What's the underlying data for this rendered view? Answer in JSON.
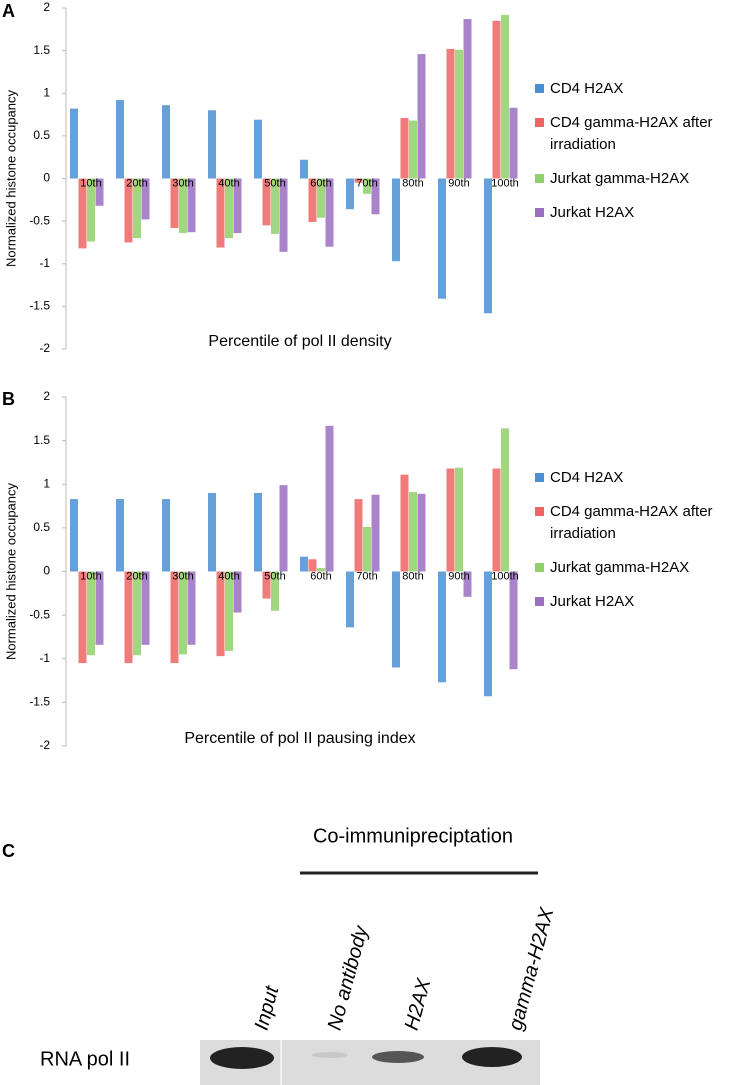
{
  "chart_data": [
    {
      "type": "bar",
      "label": "A",
      "y_label": "Normalized histone occupancy",
      "x_label": "Percentile of pol II density",
      "categories": [
        "10th",
        "20th",
        "30th",
        "40th",
        "50th",
        "60th",
        "70th",
        "80th",
        "90th",
        "100th"
      ],
      "series": [
        {
          "name": "CD4 H2AX",
          "color": "#4a8fd3",
          "values": [
            0.82,
            0.92,
            0.86,
            0.8,
            0.69,
            0.22,
            -0.36,
            -0.97,
            -1.41,
            -1.58
          ]
        },
        {
          "name": "CD4 gamma-H2AX after irradiation",
          "color": "#ee6464",
          "values": [
            -0.82,
            -0.75,
            -0.58,
            -0.81,
            -0.55,
            -0.51,
            -0.05,
            0.71,
            1.52,
            1.85
          ]
        },
        {
          "name": "Jurkat gamma-H2AX",
          "color": "#8fd06a",
          "values": [
            -0.74,
            -0.7,
            -0.64,
            -0.7,
            -0.65,
            -0.46,
            -0.18,
            0.68,
            1.51,
            1.92
          ]
        },
        {
          "name": "Jurkat H2AX",
          "color": "#9a6fc1",
          "values": [
            -0.32,
            -0.48,
            -0.63,
            -0.64,
            -0.86,
            -0.8,
            -0.42,
            1.46,
            1.87,
            0.83
          ]
        }
      ],
      "ylim": [
        -2,
        2
      ],
      "yticks": [
        -2,
        -1.5,
        -1,
        -0.5,
        0,
        0.5,
        1,
        1.5,
        2
      ]
    },
    {
      "type": "bar",
      "label": "B",
      "y_label": "Normalized histone occupancy",
      "x_label": "Percentile of pol II pausing index",
      "categories": [
        "10th",
        "20th",
        "30th",
        "40th",
        "50th",
        "60th",
        "70th",
        "80th",
        "90th",
        "100th"
      ],
      "series": [
        {
          "name": "CD4 H2AX",
          "color": "#4a8fd3",
          "values": [
            0.83,
            0.83,
            0.83,
            0.9,
            0.9,
            0.17,
            -0.64,
            -1.1,
            -1.27,
            -1.43
          ]
        },
        {
          "name": "CD4 gamma-H2AX after irradiation",
          "color": "#ee6464",
          "values": [
            -1.05,
            -1.05,
            -1.05,
            -0.97,
            -0.31,
            0.14,
            0.83,
            1.11,
            1.18,
            1.18
          ]
        },
        {
          "name": "Jurkat gamma-H2AX",
          "color": "#8fd06a",
          "values": [
            -0.96,
            -0.96,
            -0.95,
            -0.91,
            -0.45,
            0.04,
            0.51,
            0.91,
            1.19,
            1.64
          ]
        },
        {
          "name": "Jurkat H2AX",
          "color": "#9a6fc1",
          "values": [
            -0.84,
            -0.84,
            -0.84,
            -0.47,
            0.99,
            1.67,
            0.88,
            0.89,
            -0.29,
            -1.12
          ]
        }
      ],
      "ylim": [
        -2,
        2
      ],
      "yticks": [
        -2,
        -1.5,
        -1,
        -0.5,
        0,
        0.5,
        1,
        1.5,
        2
      ]
    }
  ],
  "panel_c": {
    "label": "C",
    "title": "Co-immunipreciptation",
    "lanes": [
      "Input",
      "No antibody",
      "H2AX",
      "gamma-H2AX"
    ],
    "row_label": "RNA pol II"
  }
}
